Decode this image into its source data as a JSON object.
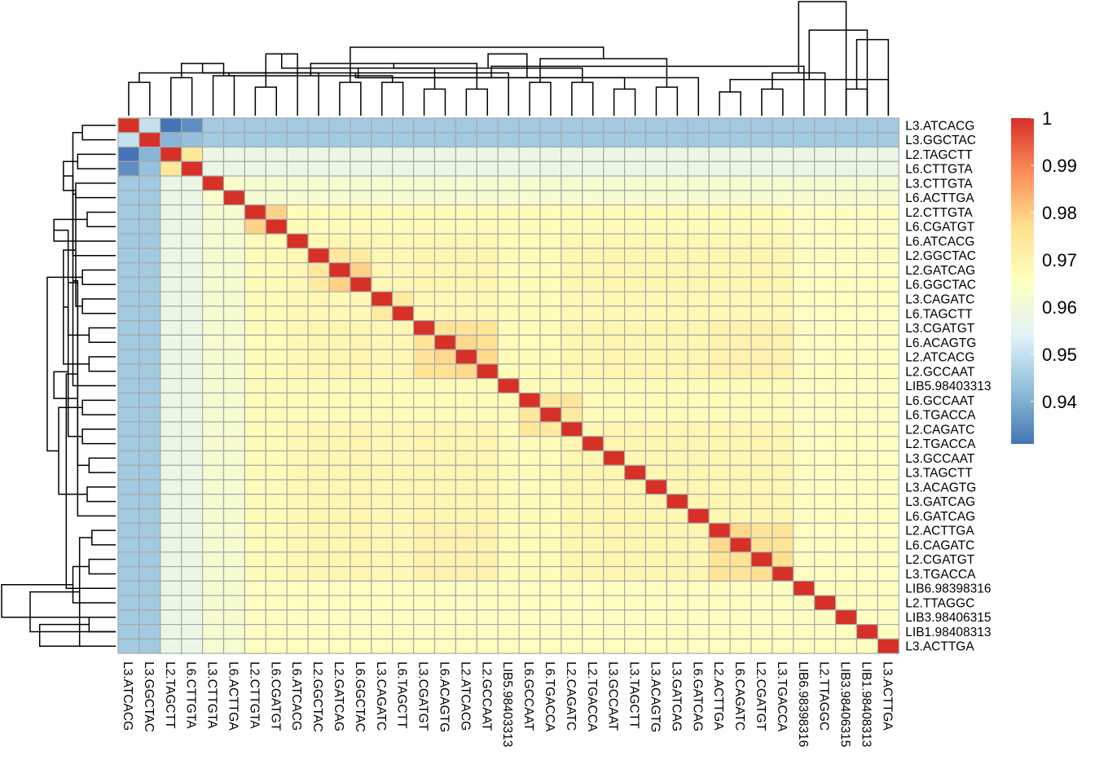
{
  "chart_data": {
    "type": "heatmap",
    "title": "",
    "xlabel": "",
    "ylabel": "",
    "labels": [
      "L3.ATCACG",
      "L3.GGCTAC",
      "L2.TAGCTT",
      "L6.CTTGTA",
      "L3.CTTGTA",
      "L6.ACTTGA",
      "L2.CTTGTA",
      "L6.CGATGT",
      "L6.ATCACG",
      "L2.GGCTAC",
      "L2.GATCAG",
      "L6.GGCTAC",
      "L3.CAGATC",
      "L6.TAGCTT",
      "L3.CGATGT",
      "L6.ACAGTG",
      "L2.ATCACG",
      "L2.GCCAAT",
      "LIB5.98403313",
      "L6.GCCAAT",
      "L6.TGACCA",
      "L2.CAGATC",
      "L2.TGACCA",
      "L3.GCCAAT",
      "L3.TAGCTT",
      "L3.ACAGTG",
      "L3.GATCAG",
      "L6.GATCAG",
      "L2.ACTTGA",
      "L6.CAGATC",
      "L2.CGATGT",
      "L3.TGACCA",
      "LIB6.98398316",
      "L2.TTAGGC",
      "LIB3.98406315",
      "LIB1.98408313",
      "L3.ACTTGA"
    ],
    "value_range": [
      0.931,
      1.0
    ],
    "diagonal_value": 1.0,
    "base_value": 0.968,
    "group_values": [
      0.945,
      0.945,
      0.958,
      0.958,
      0.962,
      0.962,
      0.967,
      0.967,
      0.968,
      0.969,
      0.969,
      0.969,
      0.968,
      0.968,
      0.971,
      0.971,
      0.971,
      0.971,
      0.967,
      0.967,
      0.967,
      0.969,
      0.969,
      0.969,
      0.969,
      0.969,
      0.969,
      0.969,
      0.97,
      0.97,
      0.97,
      0.97,
      0.965,
      0.965,
      0.965,
      0.965,
      0.965
    ],
    "pair_values": [
      {
        "i": 0,
        "j": 1,
        "v": 0.95
      },
      {
        "i": 0,
        "j": 2,
        "v": 0.931
      },
      {
        "i": 0,
        "j": 3,
        "v": 0.935
      },
      {
        "i": 1,
        "j": 2,
        "v": 0.941
      },
      {
        "i": 1,
        "j": 3,
        "v": 0.943
      },
      {
        "i": 2,
        "j": 3,
        "v": 0.974
      },
      {
        "i": 4,
        "j": 5,
        "v": 0.963
      },
      {
        "i": 6,
        "j": 7,
        "v": 0.979
      },
      {
        "i": 9,
        "j": 10,
        "v": 0.974
      },
      {
        "i": 9,
        "j": 11,
        "v": 0.973
      },
      {
        "i": 10,
        "j": 11,
        "v": 0.979
      },
      {
        "i": 12,
        "j": 13,
        "v": 0.973
      },
      {
        "i": 14,
        "j": 15,
        "v": 0.975
      },
      {
        "i": 14,
        "j": 16,
        "v": 0.975
      },
      {
        "i": 14,
        "j": 17,
        "v": 0.975
      },
      {
        "i": 15,
        "j": 16,
        "v": 0.978
      },
      {
        "i": 15,
        "j": 17,
        "v": 0.976
      },
      {
        "i": 16,
        "j": 17,
        "v": 0.978
      },
      {
        "i": 19,
        "j": 20,
        "v": 0.974
      },
      {
        "i": 19,
        "j": 21,
        "v": 0.974
      },
      {
        "i": 20,
        "j": 21,
        "v": 0.973
      },
      {
        "i": 28,
        "j": 29,
        "v": 0.978
      },
      {
        "i": 28,
        "j": 30,
        "v": 0.975
      },
      {
        "i": 28,
        "j": 31,
        "v": 0.975
      },
      {
        "i": 29,
        "j": 30,
        "v": 0.976
      },
      {
        "i": 29,
        "j": 31,
        "v": 0.975
      },
      {
        "i": 30,
        "j": 31,
        "v": 0.977
      }
    ],
    "grid": true,
    "cluster_rows": true,
    "cluster_cols": true,
    "legend": {
      "position": "right",
      "ticks": [
        "1",
        "0.99",
        "0.98",
        "0.97",
        "0.96",
        "0.95",
        "0.94"
      ],
      "tick_values": [
        1.0,
        0.99,
        0.98,
        0.97,
        0.96,
        0.95,
        0.94
      ]
    },
    "dendrogram": [
      [
        0,
        1,
        0.35
      ],
      [
        2,
        3,
        0.4
      ],
      [
        4,
        5,
        0.42
      ],
      [
        6,
        7,
        0.3
      ],
      [
        10,
        11,
        0.35
      ],
      [
        9,
        37,
        0.45
      ],
      [
        12,
        13,
        0.35
      ],
      [
        38,
        39,
        0.55
      ],
      [
        8,
        40,
        0.65
      ],
      [
        14,
        15,
        0.28
      ],
      [
        16,
        17,
        0.28
      ],
      [
        42,
        43,
        0.42
      ],
      [
        19,
        20,
        0.35
      ],
      [
        18,
        44,
        0.45
      ],
      [
        21,
        22,
        0.35
      ],
      [
        45,
        46,
        0.5
      ],
      [
        23,
        24,
        0.28
      ],
      [
        47,
        48,
        0.55
      ],
      [
        25,
        26,
        0.3
      ],
      [
        27,
        50,
        0.4
      ],
      [
        28,
        29,
        0.25
      ],
      [
        30,
        31,
        0.28
      ],
      [
        52,
        53,
        0.4
      ],
      [
        51,
        54,
        0.5
      ],
      [
        49,
        55,
        0.6
      ],
      [
        34,
        35,
        0.28
      ],
      [
        36,
        57,
        0.38
      ],
      [
        33,
        58,
        0.45
      ],
      [
        32,
        59,
        0.52
      ],
      [
        56,
        60,
        0.65
      ],
      [
        41,
        61,
        0.72
      ],
      [
        36,
        62,
        0.8
      ],
      [
        35,
        63,
        0.9
      ],
      [
        34,
        64,
        1.2
      ]
    ]
  },
  "colors": {
    "palette": [
      "#4575B4",
      "#91BFDB",
      "#E0F3F8",
      "#FFFFBF",
      "#FEE090",
      "#FC8D59",
      "#D73027"
    ],
    "grid_line": "#A9A9A9",
    "dendrogram_line": "#000000"
  }
}
